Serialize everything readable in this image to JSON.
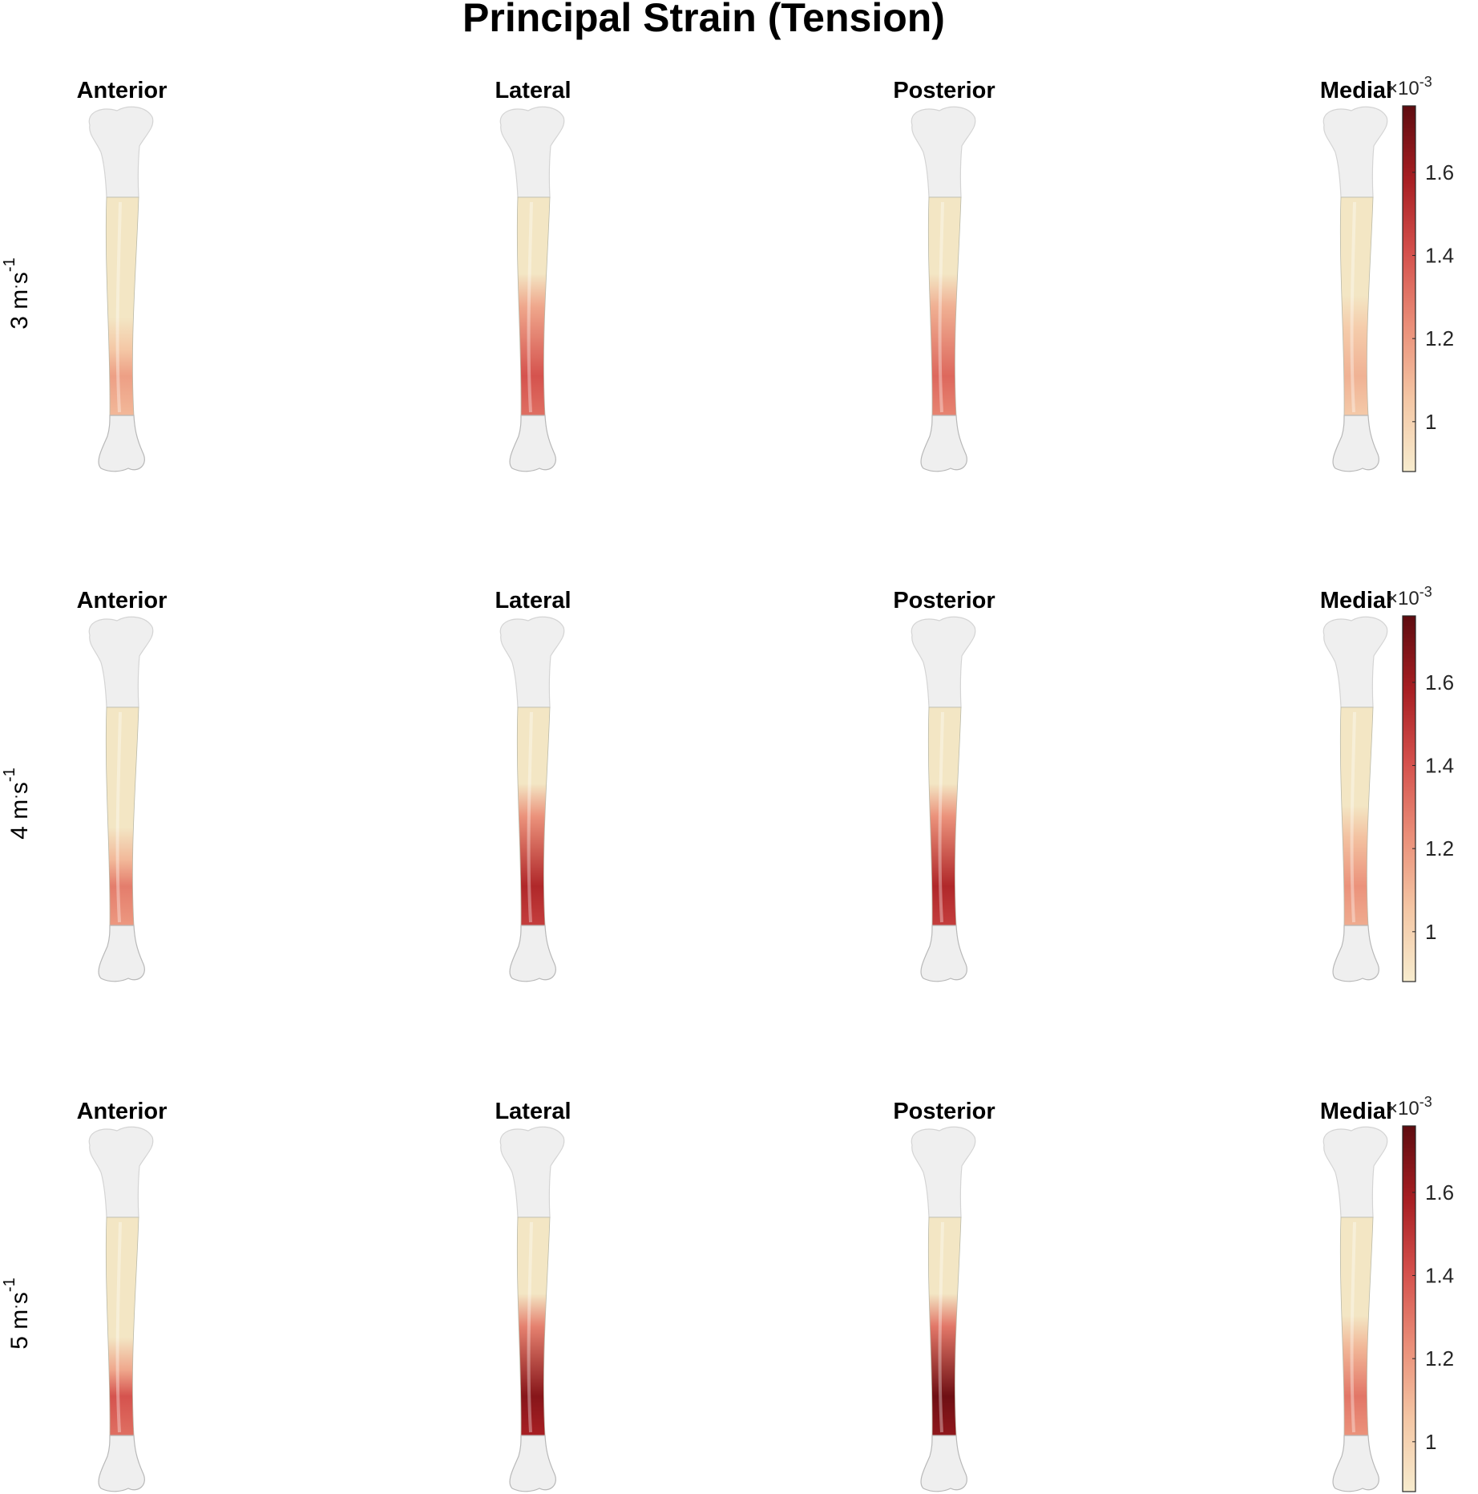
{
  "figure": {
    "title": "Principal Strain (Tension)",
    "views": [
      "Anterior",
      "Lateral",
      "Posterior",
      "Medial"
    ],
    "rows": [
      {
        "speed_base": "3 m",
        "speed_dot": "·",
        "speed_unit": "s",
        "speed_exp": "-1"
      },
      {
        "speed_base": "4 m",
        "speed_dot": "·",
        "speed_unit": "s",
        "speed_exp": "-1"
      },
      {
        "speed_base": "5 m",
        "speed_dot": "·",
        "speed_unit": "s",
        "speed_exp": "-1"
      }
    ],
    "colorbar": {
      "multiplier_prefix": "×10",
      "multiplier_exp": "-3",
      "ticks": [
        1,
        1.2,
        1.4,
        1.6
      ],
      "tick_labels": [
        "1",
        "1.2",
        "1.4",
        "1.6"
      ],
      "range": [
        0.88,
        1.76
      ],
      "colors": [
        "#f7ecce",
        "#f4c6a4",
        "#ea8e78",
        "#d4504c",
        "#a71e22",
        "#5e0c10"
      ]
    },
    "colors": {
      "bone": "#efefef",
      "bone_outline": "#9a9a9a",
      "shaft_base": "#f3e6c4",
      "strain_low": "#f4c2a0",
      "strain_mid": "#dc5a52",
      "strain_high": "#a3161e",
      "strain_peak": "#6a0c10"
    },
    "strain_peaks": [
      [
        1.18,
        1.4,
        1.34,
        1.12
      ],
      [
        1.28,
        1.55,
        1.55,
        1.22
      ],
      [
        1.4,
        1.66,
        1.72,
        1.3
      ]
    ]
  }
}
